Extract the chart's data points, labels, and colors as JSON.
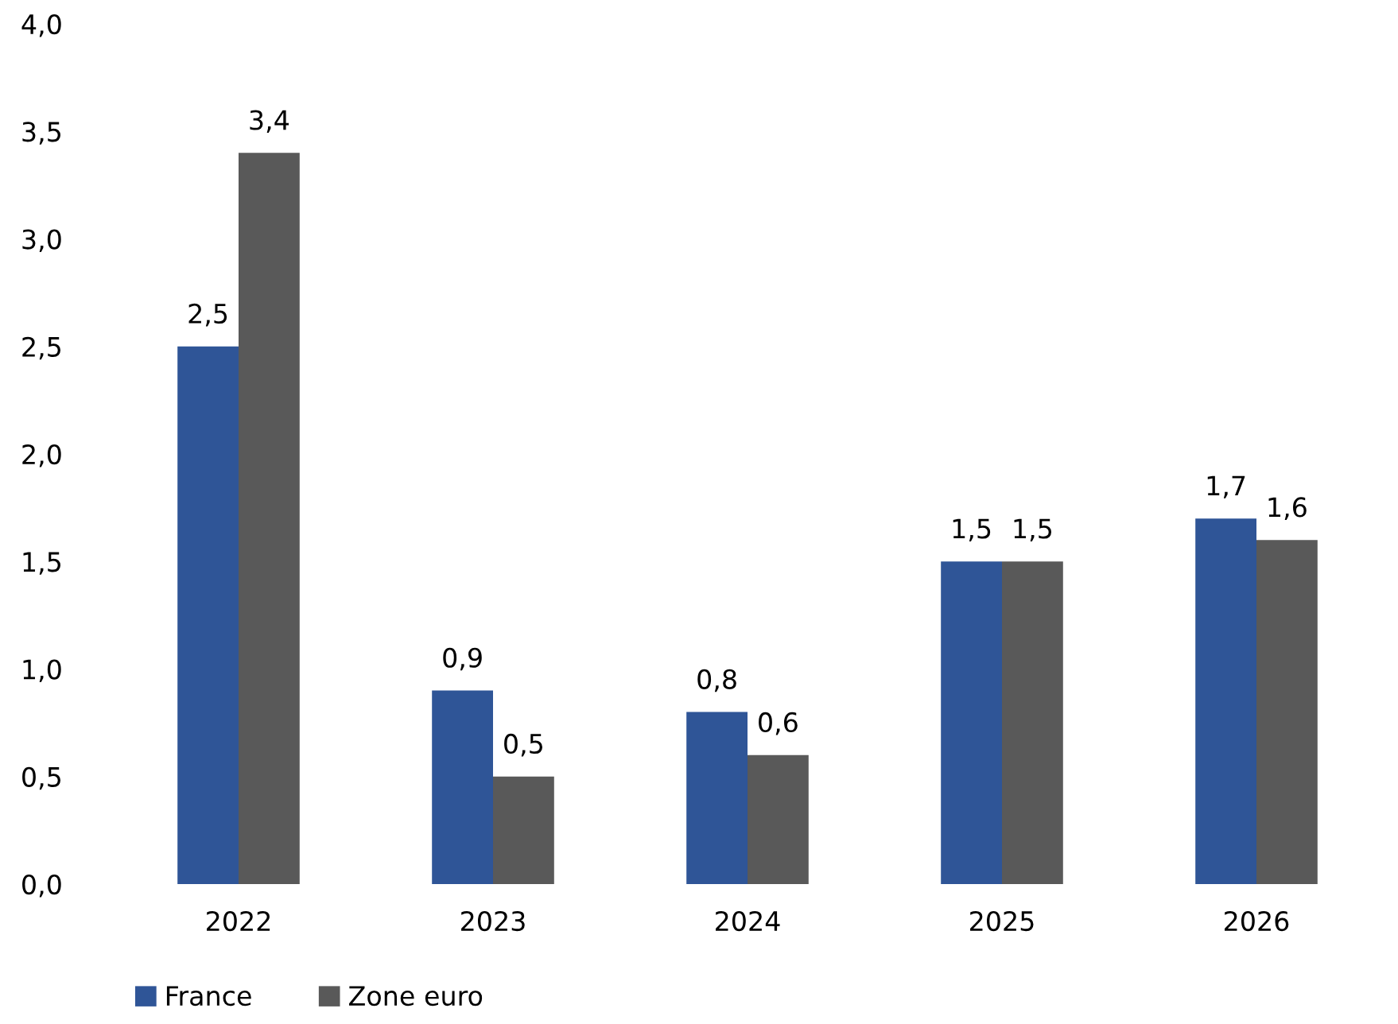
{
  "chart_data": {
    "type": "bar",
    "categories": [
      "2022",
      "2023",
      "2024",
      "2025",
      "2026"
    ],
    "series": [
      {
        "name": "France",
        "color": "#2f5597",
        "values": [
          2.5,
          0.9,
          0.8,
          1.5,
          1.7
        ],
        "value_labels": [
          "2,5",
          "0,9",
          "0,8",
          "1,5",
          "1,7"
        ]
      },
      {
        "name": "Zone euro",
        "color": "#595959",
        "values": [
          3.4,
          0.5,
          0.6,
          1.5,
          1.6
        ],
        "value_labels": [
          "3,4",
          "0,5",
          "0,6",
          "1,5",
          "1,6"
        ]
      }
    ],
    "ylim": [
      0,
      4
    ],
    "yticks": [
      {
        "value": 0,
        "label": "0,0"
      },
      {
        "value": 0.5,
        "label": "0,5"
      },
      {
        "value": 1,
        "label": "1,0"
      },
      {
        "value": 1.5,
        "label": "1,5"
      },
      {
        "value": 2,
        "label": "2,0"
      },
      {
        "value": 2.5,
        "label": "2,5"
      },
      {
        "value": 3,
        "label": "3,0"
      },
      {
        "value": 3.5,
        "label": "3,5"
      },
      {
        "value": 4,
        "label": "4,0"
      }
    ],
    "grid": false,
    "legend": "bottom left"
  }
}
